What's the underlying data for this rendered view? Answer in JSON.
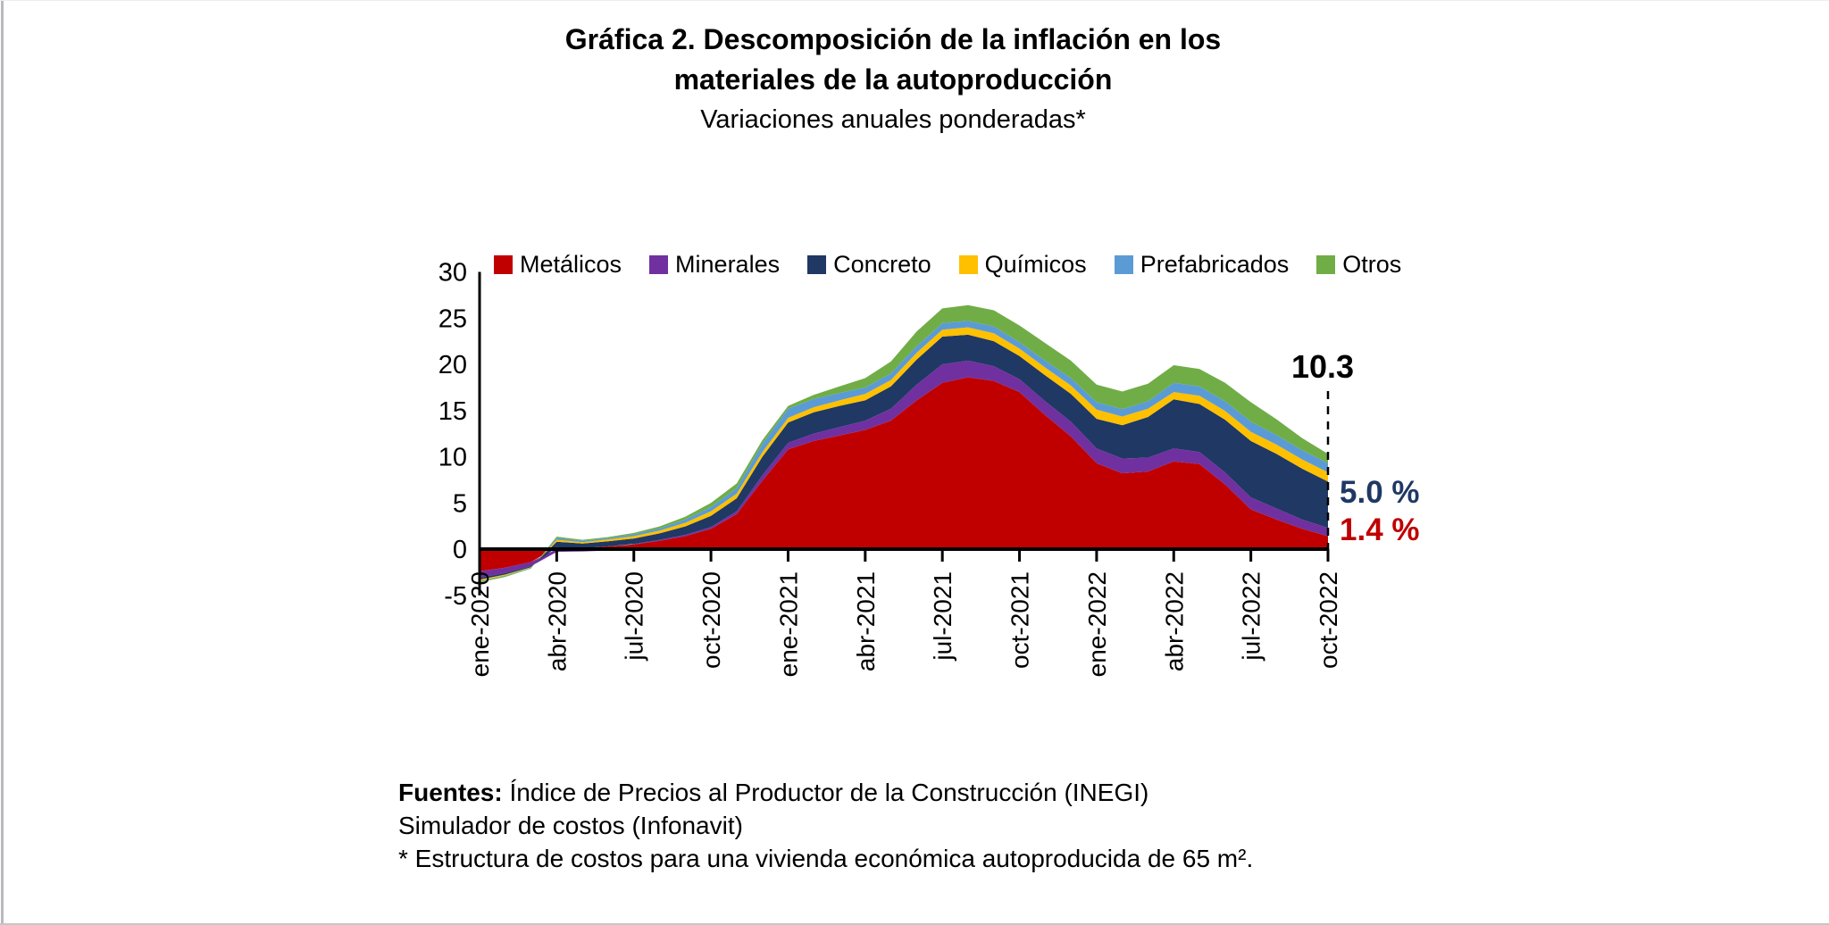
{
  "title": {
    "line1": "Gráfica 2. Descomposición de la inflación en los",
    "line2": "materiales de la autoproducción",
    "subtitle": "Variaciones anuales ponderadas*"
  },
  "annotations": {
    "total_label": "10.3",
    "total_color": "#000000",
    "concreto_label": "5.0 %",
    "concreto_color": "#1f3864",
    "metalicos_label": "1.4 %",
    "metalicos_color": "#c00000"
  },
  "footer": {
    "sources_label": "Fuentes:",
    "source1": " Índice de Precios al Productor de la Construcción (INEGI)",
    "source2": "Simulador de costos (Infonavit)",
    "note": "* Estructura de costos para una vivienda económica autoproducida de 65 m²."
  },
  "chart_data": {
    "type": "area",
    "stacked": true,
    "grid": false,
    "legend_position": "top",
    "ylim": [
      -5,
      30
    ],
    "y_ticks": [
      -5,
      0,
      5,
      10,
      15,
      20,
      25,
      30
    ],
    "x_tick_every": 3,
    "x": [
      "ene-2020",
      "feb-2020",
      "mar-2020",
      "abr-2020",
      "may-2020",
      "jun-2020",
      "jul-2020",
      "ago-2020",
      "sep-2020",
      "oct-2020",
      "nov-2020",
      "dic-2020",
      "ene-2021",
      "feb-2021",
      "mar-2021",
      "abr-2021",
      "may-2021",
      "jun-2021",
      "jul-2021",
      "ago-2021",
      "sep-2021",
      "oct-2021",
      "nov-2021",
      "dic-2021",
      "ene-2022",
      "feb-2022",
      "mar-2022",
      "abr-2022",
      "may-2022",
      "jun-2022",
      "jul-2022",
      "ago-2022",
      "sep-2022",
      "oct-2022"
    ],
    "x_tick_labels": [
      "ene-2020",
      "abr-2020",
      "jul-2020",
      "oct-2020",
      "ene-2021",
      "abr-2021",
      "jul-2021",
      "oct-2021",
      "ene-2022",
      "abr-2022",
      "jul-2022",
      "oct-2022"
    ],
    "series": [
      {
        "name": "Metálicos",
        "color": "#c00000",
        "values": [
          -2.4,
          -2.0,
          -1.4,
          0.2,
          0.1,
          0.3,
          0.5,
          0.9,
          1.4,
          2.2,
          3.8,
          7.4,
          10.8,
          11.7,
          12.3,
          12.9,
          13.9,
          16.1,
          18.0,
          18.6,
          18.2,
          17.0,
          14.5,
          12.2,
          9.3,
          8.2,
          8.4,
          9.5,
          9.2,
          7.0,
          4.3,
          3.2,
          2.2,
          1.4
        ]
      },
      {
        "name": "Minerales",
        "color": "#7030a0",
        "values": [
          -0.7,
          -0.6,
          -0.45,
          -0.3,
          -0.25,
          -0.15,
          0.05,
          0.1,
          0.15,
          0.2,
          0.3,
          0.6,
          0.7,
          0.8,
          0.9,
          1.0,
          1.3,
          1.7,
          2.0,
          1.8,
          1.6,
          1.4,
          1.5,
          1.6,
          1.6,
          1.6,
          1.5,
          1.4,
          1.3,
          1.3,
          1.3,
          1.2,
          1.0,
          0.9
        ]
      },
      {
        "name": "Concreto",
        "color": "#1f3864",
        "values": [
          -0.2,
          -0.15,
          -0.1,
          0.6,
          0.5,
          0.55,
          0.6,
          0.7,
          0.9,
          1.2,
          1.4,
          2.0,
          2.2,
          2.3,
          2.3,
          2.2,
          2.4,
          2.7,
          3.0,
          2.8,
          2.7,
          2.5,
          2.8,
          3.0,
          3.2,
          3.6,
          4.4,
          5.3,
          5.2,
          5.7,
          6.1,
          5.9,
          5.5,
          5.0
        ]
      },
      {
        "name": "Químicos",
        "color": "#ffc000",
        "values": [
          -0.15,
          -0.1,
          -0.05,
          0.2,
          0.15,
          0.2,
          0.25,
          0.3,
          0.4,
          0.5,
          0.5,
          0.5,
          0.5,
          0.55,
          0.6,
          0.7,
          0.7,
          0.75,
          0.75,
          0.8,
          0.85,
          0.8,
          0.85,
          0.9,
          1.0,
          0.95,
          0.9,
          0.8,
          0.9,
          0.95,
          1.0,
          1.0,
          1.0,
          1.0
        ]
      },
      {
        "name": "Prefabricados",
        "color": "#5b9bd5",
        "values": [
          -0.05,
          -0.05,
          -0.05,
          0.2,
          0.15,
          0.15,
          0.2,
          0.25,
          0.35,
          0.45,
          0.6,
          0.9,
          1.0,
          0.9,
          0.8,
          0.7,
          0.7,
          0.7,
          0.7,
          0.7,
          0.75,
          0.7,
          0.75,
          0.8,
          0.8,
          0.8,
          0.8,
          1.0,
          1.0,
          1.05,
          1.1,
          1.05,
          1.0,
          1.0
        ]
      },
      {
        "name": "Otros",
        "color": "#70ad47",
        "values": [
          -0.1,
          -0.1,
          -0.05,
          0.15,
          0.1,
          0.1,
          0.15,
          0.2,
          0.3,
          0.45,
          0.5,
          0.4,
          0.3,
          0.45,
          0.7,
          1.0,
          1.3,
          1.6,
          1.6,
          1.7,
          1.75,
          1.8,
          1.9,
          1.9,
          1.9,
          1.9,
          1.9,
          1.9,
          1.9,
          2.0,
          2.1,
          1.7,
          1.3,
          1.0
        ]
      }
    ],
    "end_labels": {
      "total": 10.3,
      "concreto": 5.0,
      "metalicos": 1.4
    }
  }
}
